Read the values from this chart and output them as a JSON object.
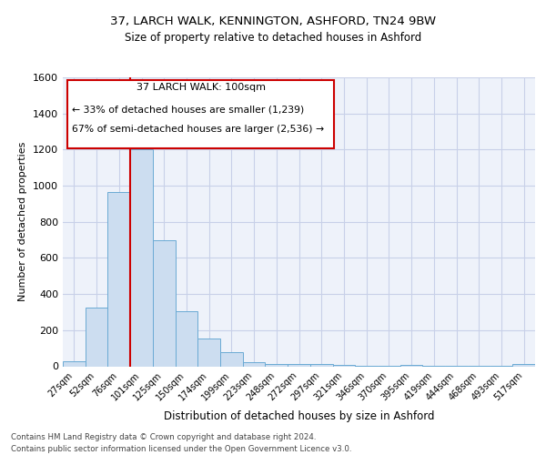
{
  "title_line1": "37, LARCH WALK, KENNINGTON, ASHFORD, TN24 9BW",
  "title_line2": "Size of property relative to detached houses in Ashford",
  "xlabel": "Distribution of detached houses by size in Ashford",
  "ylabel": "Number of detached properties",
  "categories": [
    "27sqm",
    "52sqm",
    "76sqm",
    "101sqm",
    "125sqm",
    "150sqm",
    "174sqm",
    "199sqm",
    "223sqm",
    "248sqm",
    "272sqm",
    "297sqm",
    "321sqm",
    "346sqm",
    "370sqm",
    "395sqm",
    "419sqm",
    "444sqm",
    "468sqm",
    "493sqm",
    "517sqm"
  ],
  "values": [
    30,
    325,
    965,
    1200,
    700,
    305,
    155,
    80,
    25,
    15,
    15,
    15,
    10,
    5,
    5,
    10,
    5,
    5,
    5,
    5,
    15
  ],
  "bar_color": "#ccddf0",
  "bar_edge_color": "#6aaad4",
  "vline_color": "#cc0000",
  "vline_at_index": 3,
  "annotation_title": "37 LARCH WALK: 100sqm",
  "annotation_line1": "← 33% of detached houses are smaller (1,239)",
  "annotation_line2": "67% of semi-detached houses are larger (2,536) →",
  "annotation_box_facecolor": "#ffffff",
  "annotation_box_edgecolor": "#cc0000",
  "ylim": [
    0,
    1600
  ],
  "yticks": [
    0,
    200,
    400,
    600,
    800,
    1000,
    1200,
    1400,
    1600
  ],
  "plot_bg_color": "#eef2fa",
  "figure_bg_color": "#ffffff",
  "grid_color": "#c8d0e8",
  "footnote1": "Contains HM Land Registry data © Crown copyright and database right 2024.",
  "footnote2": "Contains public sector information licensed under the Open Government Licence v3.0."
}
